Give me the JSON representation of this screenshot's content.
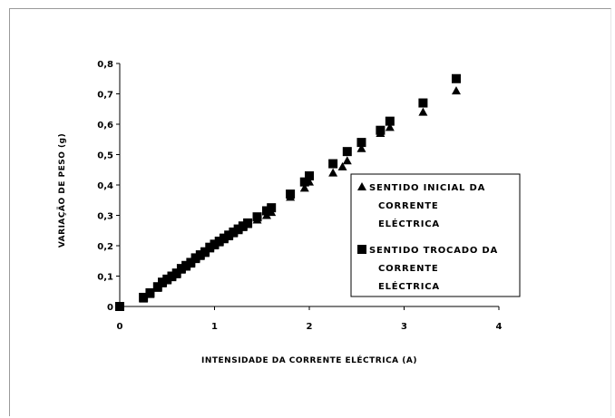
{
  "chart_data": {
    "type": "scatter",
    "xlabel": "INTENSIDADE DA CORRENTE ELÉCTRICA (A)",
    "ylabel": "VARIAÇÃO DE PESO (g)",
    "xlim": [
      0,
      4
    ],
    "ylim": [
      0,
      0.8
    ],
    "x_ticks": [
      "0",
      "1",
      "2",
      "3",
      "4"
    ],
    "y_ticks": [
      "0",
      "0,1",
      "0,2",
      "0,3",
      "0,4",
      "0,5",
      "0,6",
      "0,7",
      "0,8"
    ],
    "grid": false,
    "legend_position": "right",
    "series": [
      {
        "name": "SENTIDO INICIAL DA CORRENTE ELÉCTRICA",
        "marker": "triangle",
        "color": "#000000",
        "x": [
          0,
          0.25,
          0.32,
          0.4,
          0.45,
          0.5,
          0.55,
          0.6,
          0.65,
          0.7,
          0.75,
          0.8,
          0.85,
          0.9,
          0.95,
          1.0,
          1.05,
          1.1,
          1.15,
          1.2,
          1.25,
          1.3,
          1.35,
          1.45,
          1.55,
          1.6,
          1.8,
          1.95,
          2.0,
          2.25,
          2.35,
          2.4,
          2.55,
          2.75,
          2.85,
          3.2,
          3.55
        ],
        "y": [
          0,
          0.025,
          0.04,
          0.06,
          0.075,
          0.085,
          0.095,
          0.105,
          0.12,
          0.13,
          0.14,
          0.155,
          0.165,
          0.175,
          0.19,
          0.2,
          0.21,
          0.22,
          0.23,
          0.24,
          0.25,
          0.26,
          0.27,
          0.285,
          0.3,
          0.31,
          0.36,
          0.39,
          0.41,
          0.44,
          0.46,
          0.48,
          0.52,
          0.57,
          0.59,
          0.64,
          0.71
        ]
      },
      {
        "name": "SENTIDO TROCADO DA CORRENTE ELÉCTRICA",
        "marker": "square",
        "color": "#000000",
        "x": [
          0,
          0.25,
          0.32,
          0.4,
          0.45,
          0.5,
          0.55,
          0.6,
          0.65,
          0.7,
          0.75,
          0.8,
          0.85,
          0.9,
          0.95,
          1.0,
          1.05,
          1.1,
          1.15,
          1.2,
          1.25,
          1.3,
          1.35,
          1.45,
          1.55,
          1.6,
          1.8,
          1.95,
          2.0,
          2.25,
          2.4,
          2.55,
          2.75,
          2.85,
          3.2,
          3.55
        ],
        "y": [
          0,
          0.03,
          0.045,
          0.065,
          0.08,
          0.09,
          0.1,
          0.11,
          0.125,
          0.135,
          0.145,
          0.16,
          0.17,
          0.18,
          0.195,
          0.205,
          0.215,
          0.225,
          0.235,
          0.245,
          0.255,
          0.265,
          0.275,
          0.295,
          0.315,
          0.325,
          0.37,
          0.41,
          0.43,
          0.47,
          0.51,
          0.54,
          0.58,
          0.61,
          0.67,
          0.75
        ]
      }
    ],
    "legend": {
      "entries": [
        [
          "SENTIDO INICIAL DA",
          "CORRENTE",
          "ELÉCTRICA"
        ],
        [
          "SENTIDO TROCADO DA",
          "CORRENTE",
          "ELÉCTRICA"
        ]
      ]
    }
  }
}
